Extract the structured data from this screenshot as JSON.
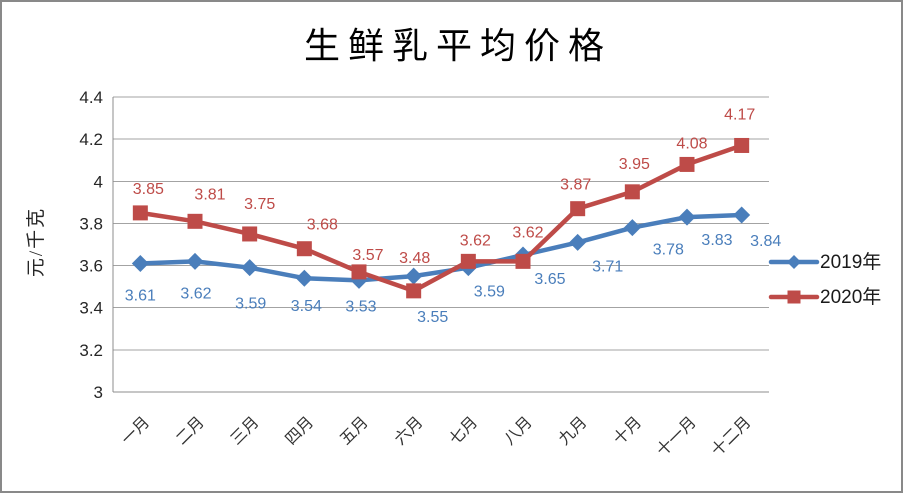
{
  "frame": {
    "background": "#ffffff",
    "border_color": "#898989"
  },
  "chart_data": {
    "type": "line",
    "title": "生鲜乳平均价格",
    "ylabel": "元/千克",
    "xlabel": "",
    "categories": [
      "一月",
      "二月",
      "三月",
      "四月",
      "五月",
      "六月",
      "七月",
      "八月",
      "九月",
      "十月",
      "十一月",
      "十二月"
    ],
    "series": [
      {
        "name": "2019年",
        "color": "#4A7EBB",
        "marker": "diamond",
        "values": [
          3.61,
          3.62,
          3.59,
          3.54,
          3.53,
          3.55,
          3.59,
          3.65,
          3.71,
          3.78,
          3.83,
          3.84
        ],
        "label_offsets": [
          [
            0,
            31
          ],
          [
            1,
            31
          ],
          [
            1,
            35
          ],
          [
            2,
            27
          ],
          [
            2,
            25
          ],
          [
            19,
            40
          ],
          [
            21,
            23
          ],
          [
            27,
            23
          ],
          [
            30,
            23
          ],
          [
            36,
            21
          ],
          [
            30,
            22
          ],
          [
            24,
            25
          ]
        ]
      },
      {
        "name": "2020年",
        "color": "#BE4B48",
        "marker": "square",
        "values": [
          3.85,
          3.81,
          3.75,
          3.68,
          3.57,
          3.48,
          3.62,
          3.62,
          3.87,
          3.95,
          4.08,
          4.17
        ],
        "label_offsets": [
          [
            8,
            -25
          ],
          [
            15,
            -28
          ],
          [
            10,
            -31
          ],
          [
            18,
            -25
          ],
          [
            9,
            -18
          ],
          [
            1,
            -34
          ],
          [
            7,
            -22
          ],
          [
            5,
            -30
          ],
          [
            -2,
            -25
          ],
          [
            2,
            -29
          ],
          [
            5,
            -22
          ],
          [
            -2,
            -32
          ]
        ]
      }
    ],
    "ylim": [
      3,
      4.4
    ],
    "ytick_labels": [
      "3",
      "3.2",
      "3.4",
      "3.6",
      "3.8",
      "4",
      "4.2",
      "4.4"
    ],
    "grid": true,
    "gridline_color": "#A3A3A3",
    "axis_color": "#8C8C8C",
    "legend_position": "right"
  }
}
